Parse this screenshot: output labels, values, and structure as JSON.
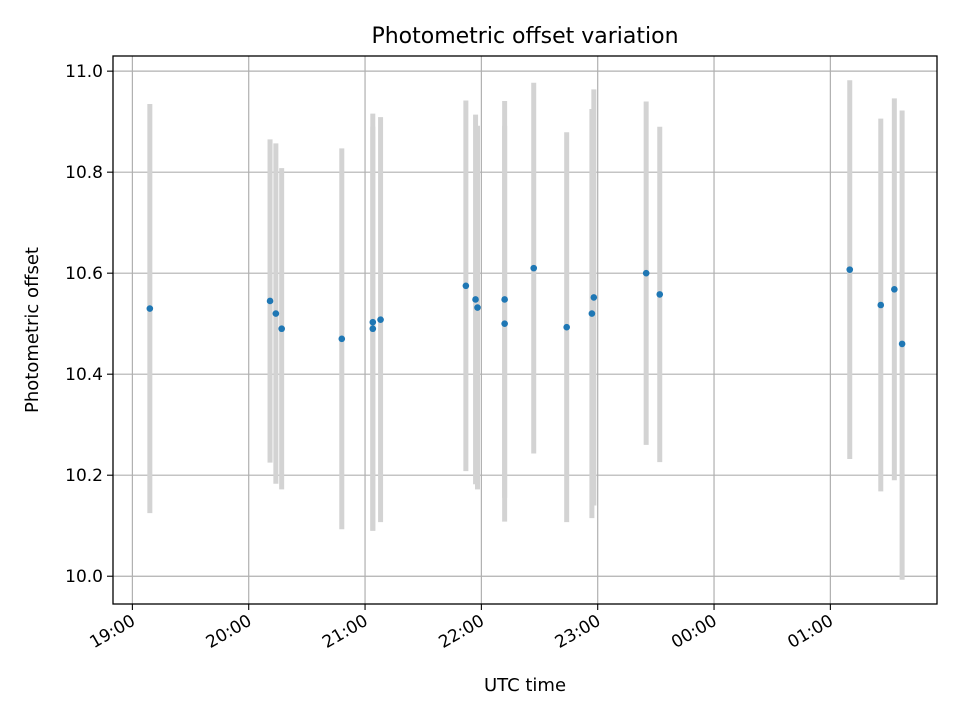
{
  "chart_data": {
    "type": "scatter",
    "title": "Photometric offset variation",
    "xlabel": "UTC time",
    "ylabel": "Photometric offset",
    "xlim": [
      "18:50",
      "1:55"
    ],
    "ylim": [
      9.945,
      11.03
    ],
    "x_ticks": [
      "19:00",
      "20:00",
      "21:00",
      "22:00",
      "23:00",
      "00:00",
      "01:00"
    ],
    "y_ticks": [
      "10.0",
      "10.2",
      "10.4",
      "10.6",
      "10.8",
      "11.0"
    ],
    "grid": true,
    "colors": {
      "point": "#1f77b4",
      "errorbar": "#d3d3d3"
    },
    "series": [
      {
        "points": [
          {
            "t": "19:09",
            "y": 10.53,
            "lo": 10.125,
            "hi": 10.935
          },
          {
            "t": "20:11",
            "y": 10.545,
            "lo": 10.225,
            "hi": 10.865
          },
          {
            "t": "20:14",
            "y": 10.52,
            "lo": 10.183,
            "hi": 10.857
          },
          {
            "t": "20:17",
            "y": 10.49,
            "lo": 10.172,
            "hi": 10.808
          },
          {
            "t": "20:48",
            "y": 10.47,
            "lo": 10.093,
            "hi": 10.847
          },
          {
            "t": "21:04",
            "y": 10.503,
            "lo": 10.09,
            "hi": 10.916
          },
          {
            "t": "21:04",
            "y": 10.49,
            "lo": 10.09,
            "hi": 10.89
          },
          {
            "t": "21:08",
            "y": 10.508,
            "lo": 10.107,
            "hi": 10.909
          },
          {
            "t": "21:52",
            "y": 10.575,
            "lo": 10.208,
            "hi": 10.942
          },
          {
            "t": "21:57",
            "y": 10.548,
            "lo": 10.182,
            "hi": 10.914
          },
          {
            "t": "21:58",
            "y": 10.532,
            "lo": 10.172,
            "hi": 10.892
          },
          {
            "t": "22:12",
            "y": 10.548,
            "lo": 10.155,
            "hi": 10.941
          },
          {
            "t": "22:12",
            "y": 10.5,
            "lo": 10.108,
            "hi": 10.892
          },
          {
            "t": "22:27",
            "y": 10.61,
            "lo": 10.243,
            "hi": 10.977
          },
          {
            "t": "22:44",
            "y": 10.493,
            "lo": 10.107,
            "hi": 10.879
          },
          {
            "t": "22:57",
            "y": 10.52,
            "lo": 10.115,
            "hi": 10.925
          },
          {
            "t": "22:58",
            "y": 10.552,
            "lo": 10.14,
            "hi": 10.964
          },
          {
            "t": "23:25",
            "y": 10.6,
            "lo": 10.26,
            "hi": 10.94
          },
          {
            "t": "23:32",
            "y": 10.558,
            "lo": 10.226,
            "hi": 10.89
          },
          {
            "t": "1:10",
            "y": 10.607,
            "lo": 10.232,
            "hi": 10.982
          },
          {
            "t": "1:26",
            "y": 10.537,
            "lo": 10.168,
            "hi": 10.906
          },
          {
            "t": "1:33",
            "y": 10.568,
            "lo": 10.19,
            "hi": 10.946
          },
          {
            "t": "1:37",
            "y": 10.46,
            "lo": 9.993,
            "hi": 10.922
          }
        ]
      }
    ]
  }
}
